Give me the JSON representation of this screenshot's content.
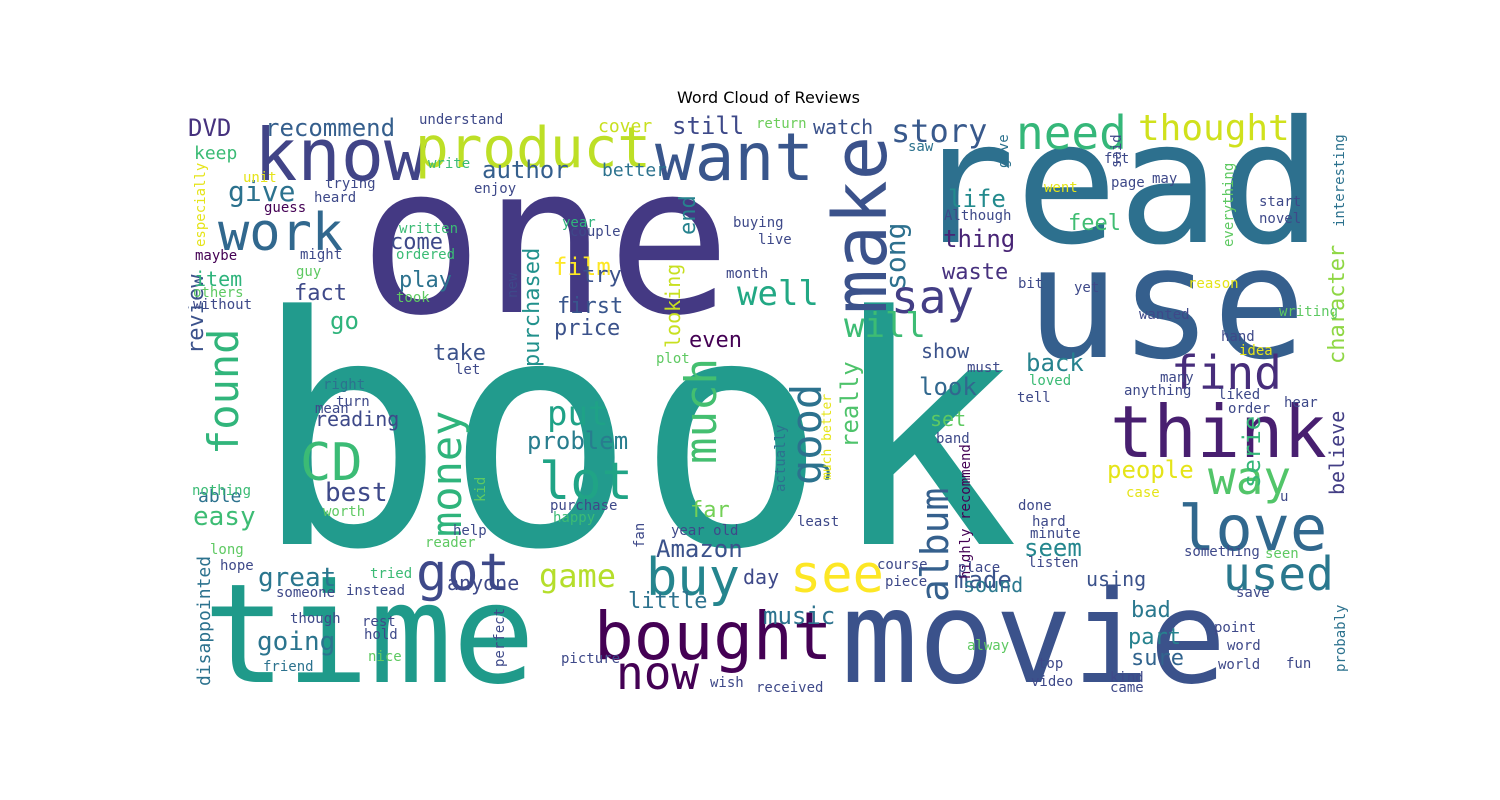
{
  "chart_data": {
    "type": "wordcloud",
    "title": "Word Cloud of Reviews",
    "colormap": "viridis",
    "background": "#ffffff",
    "words": [
      {
        "text": "book",
        "color": "#229b8d"
      },
      {
        "text": "one",
        "color": "#443983"
      },
      {
        "text": "read",
        "color": "#2d708e"
      },
      {
        "text": "use",
        "color": "#355f8d"
      },
      {
        "text": "movie",
        "color": "#3b528b"
      },
      {
        "text": "time",
        "color": "#1f9a8a"
      },
      {
        "text": "know",
        "color": "#414487"
      },
      {
        "text": "want",
        "color": "#39568c"
      },
      {
        "text": "product",
        "color": "#bddf26"
      },
      {
        "text": "bought",
        "color": "#440154"
      },
      {
        "text": "think",
        "color": "#481f70"
      },
      {
        "text": "make",
        "color": "#3b528b"
      },
      {
        "text": "love",
        "color": "#31688e"
      },
      {
        "text": "need",
        "color": "#35b779"
      },
      {
        "text": "thought",
        "color": "#d0e11c"
      },
      {
        "text": "work",
        "color": "#31688e"
      },
      {
        "text": "CD",
        "color": "#3bbb75"
      },
      {
        "text": "see",
        "color": "#fde725"
      },
      {
        "text": "used",
        "color": "#2a788e"
      },
      {
        "text": "way",
        "color": "#52c569"
      },
      {
        "text": "find",
        "color": "#472d7b"
      },
      {
        "text": "say",
        "color": "#433e85"
      },
      {
        "text": "buy",
        "color": "#25858e"
      },
      {
        "text": "lot",
        "color": "#20a486"
      },
      {
        "text": "got",
        "color": "#3e4989"
      },
      {
        "text": "now",
        "color": "#440154"
      },
      {
        "text": "much",
        "color": "#44bf70"
      },
      {
        "text": "good",
        "color": "#2c728e"
      },
      {
        "text": "found",
        "color": "#31b57b"
      },
      {
        "text": "money",
        "color": "#2fb47c"
      },
      {
        "text": "album",
        "color": "#35608d"
      },
      {
        "text": "story",
        "color": "#38598c"
      },
      {
        "text": "well",
        "color": "#22a884"
      },
      {
        "text": "will",
        "color": "#3dbc74"
      },
      {
        "text": "put",
        "color": "#1fa287"
      },
      {
        "text": "game",
        "color": "#b5de2b"
      },
      {
        "text": "give",
        "color": "#2c728e"
      },
      {
        "text": "song",
        "color": "#2d708e"
      },
      {
        "text": "problem",
        "color": "#287d8e"
      },
      {
        "text": "recommend",
        "color": "#355f8d"
      },
      {
        "text": "author",
        "color": "#355f8d"
      },
      {
        "text": "still",
        "color": "#3e4989"
      },
      {
        "text": "watch",
        "color": "#3b528b"
      },
      {
        "text": "DVD",
        "color": "#46327e"
      },
      {
        "text": "great",
        "color": "#2a768e"
      },
      {
        "text": "going",
        "color": "#2b748e"
      },
      {
        "text": "film",
        "color": "#fde725"
      },
      {
        "text": "purchased",
        "color": "#21918c"
      },
      {
        "text": "end",
        "color": "#26828e"
      },
      {
        "text": "people",
        "color": "#e5e419"
      },
      {
        "text": "seem",
        "color": "#24868e"
      },
      {
        "text": "made",
        "color": "#3a548c"
      },
      {
        "text": "music",
        "color": "#2c728e"
      },
      {
        "text": "little",
        "color": "#2c728e"
      },
      {
        "text": "sure",
        "color": "#32648e"
      },
      {
        "text": "Amazon",
        "color": "#3b528b"
      },
      {
        "text": "character",
        "color": "#8fd744"
      },
      {
        "text": "believe",
        "color": "#433e85"
      },
      {
        "text": "really",
        "color": "#4ec36b"
      },
      {
        "text": "thing",
        "color": "#482475"
      },
      {
        "text": "life",
        "color": "#238a8d"
      },
      {
        "text": "feel",
        "color": "#40bd72"
      },
      {
        "text": "waste",
        "color": "#46307e"
      },
      {
        "text": "look",
        "color": "#31688e"
      },
      {
        "text": "show",
        "color": "#3b528b"
      },
      {
        "text": "back",
        "color": "#26828e"
      },
      {
        "text": "serie",
        "color": "#35b779"
      },
      {
        "text": "easy",
        "color": "#3dbc74"
      },
      {
        "text": "best",
        "color": "#3e4989"
      },
      {
        "text": "review",
        "color": "#3b528b"
      },
      {
        "text": "come",
        "color": "#3e4989"
      },
      {
        "text": "play",
        "color": "#2c728e"
      },
      {
        "text": "first",
        "color": "#39568c"
      },
      {
        "text": "price",
        "color": "#3b528b"
      },
      {
        "text": "try",
        "color": "#3b528b"
      },
      {
        "text": "take",
        "color": "#3b528b"
      },
      {
        "text": "even",
        "color": "#440154"
      },
      {
        "text": "fact",
        "color": "#3e4989"
      },
      {
        "text": "go",
        "color": "#2fb47c"
      },
      {
        "text": "item",
        "color": "#2fb47c"
      },
      {
        "text": "keep",
        "color": "#3bbb75"
      },
      {
        "text": "reading",
        "color": "#3e4989"
      },
      {
        "text": "anyone",
        "color": "#3e4989"
      },
      {
        "text": "day",
        "color": "#3e4989"
      },
      {
        "text": "far",
        "color": "#73d056"
      },
      {
        "text": "looking",
        "color": "#c8e020"
      },
      {
        "text": "set",
        "color": "#5ec962"
      },
      {
        "text": "part",
        "color": "#26828e"
      },
      {
        "text": "bad",
        "color": "#2a788e"
      },
      {
        "text": "sound",
        "color": "#2a788e"
      },
      {
        "text": "using",
        "color": "#3b528b"
      },
      {
        "text": "able",
        "color": "#2c728e"
      },
      {
        "text": "disappointed",
        "color": "#2c728e"
      },
      {
        "text": "better",
        "color": "#2c728e"
      },
      {
        "text": "cover",
        "color": "#c8e020"
      },
      {
        "text": "understand",
        "color": "#3e4989"
      },
      {
        "text": "return",
        "color": "#6ccd5a"
      },
      {
        "text": "write",
        "color": "#3bbb75"
      },
      {
        "text": "enjoy",
        "color": "#3e4989"
      },
      {
        "text": "trying",
        "color": "#3e4989"
      },
      {
        "text": "heard",
        "color": "#3e4989"
      },
      {
        "text": "especially",
        "color": "#e5e419"
      },
      {
        "text": "unit",
        "color": "#e5e419"
      },
      {
        "text": "guess",
        "color": "#440154"
      },
      {
        "text": "written",
        "color": "#3bbb75"
      },
      {
        "text": "ordered",
        "color": "#3bbb75"
      },
      {
        "text": "couple",
        "color": "#3e4989"
      },
      {
        "text": "year",
        "color": "#2fb47c"
      },
      {
        "text": "buying",
        "color": "#3e4989"
      },
      {
        "text": "live",
        "color": "#3e4989"
      },
      {
        "text": "month",
        "color": "#3e4989"
      },
      {
        "text": "maybe",
        "color": "#440154"
      },
      {
        "text": "might",
        "color": "#3e4989"
      },
      {
        "text": "guy",
        "color": "#5ec962"
      },
      {
        "text": "others",
        "color": "#5ec962"
      },
      {
        "text": "without",
        "color": "#3e4989"
      },
      {
        "text": "took",
        "color": "#5ec962"
      },
      {
        "text": "new",
        "color": "#3e4989"
      },
      {
        "text": "plot",
        "color": "#5ec962"
      },
      {
        "text": "let",
        "color": "#3e4989"
      },
      {
        "text": "right",
        "color": "#2c728e"
      },
      {
        "text": "turn",
        "color": "#3e4989"
      },
      {
        "text": "mean",
        "color": "#3e4989"
      },
      {
        "text": "nothing",
        "color": "#3bbb75"
      },
      {
        "text": "kid",
        "color": "#5ec962"
      },
      {
        "text": "worth",
        "color": "#5ec962"
      },
      {
        "text": "purchase",
        "color": "#3e4989"
      },
      {
        "text": "happy",
        "color": "#3bbb75"
      },
      {
        "text": "reader",
        "color": "#5ec962"
      },
      {
        "text": "help",
        "color": "#3e4989"
      },
      {
        "text": "year old",
        "color": "#3e4989"
      },
      {
        "text": "fan",
        "color": "#3e4989"
      },
      {
        "text": "long",
        "color": "#5ec962"
      },
      {
        "text": "hope",
        "color": "#3e4989"
      },
      {
        "text": "tried",
        "color": "#3bbb75"
      },
      {
        "text": "instead",
        "color": "#3e4989"
      },
      {
        "text": "someone",
        "color": "#3e4989"
      },
      {
        "text": "though",
        "color": "#3e4989"
      },
      {
        "text": "rest",
        "color": "#3e4989"
      },
      {
        "text": "hold",
        "color": "#3e4989"
      },
      {
        "text": "nice",
        "color": "#5ec962"
      },
      {
        "text": "friend",
        "color": "#2c728e"
      },
      {
        "text": "perfect",
        "color": "#3e4989"
      },
      {
        "text": "picture",
        "color": "#3e4989"
      },
      {
        "text": "wish",
        "color": "#3e4989"
      },
      {
        "text": "received",
        "color": "#3e4989"
      },
      {
        "text": "actually",
        "color": "#2c728e"
      },
      {
        "text": "much better",
        "color": "#e5e419"
      },
      {
        "text": "least",
        "color": "#3e4989"
      },
      {
        "text": "course",
        "color": "#3e4989"
      },
      {
        "text": "piece",
        "color": "#3e4989"
      },
      {
        "text": "must",
        "color": "#3e4989"
      },
      {
        "text": "saw",
        "color": "#2c728e"
      },
      {
        "text": "gave",
        "color": "#2c728e"
      },
      {
        "text": "said",
        "color": "#3e4989"
      },
      {
        "text": "Although",
        "color": "#3e4989"
      },
      {
        "text": "went",
        "color": "#e5e419"
      },
      {
        "text": "fit",
        "color": "#3e4989"
      },
      {
        "text": "page",
        "color": "#3e4989"
      },
      {
        "text": "may",
        "color": "#3e4989"
      },
      {
        "text": "everything",
        "color": "#5ec962"
      },
      {
        "text": "start",
        "color": "#3e4989"
      },
      {
        "text": "novel",
        "color": "#3e4989"
      },
      {
        "text": "interesting",
        "color": "#2c728e"
      },
      {
        "text": "bit",
        "color": "#3e4989"
      },
      {
        "text": "yet",
        "color": "#3e4989"
      },
      {
        "text": "reason",
        "color": "#e5e419"
      },
      {
        "text": "wanted",
        "color": "#3e4989"
      },
      {
        "text": "writing",
        "color": "#5ec962"
      },
      {
        "text": "hand",
        "color": "#3e4989"
      },
      {
        "text": "idea",
        "color": "#e5e419"
      },
      {
        "text": "loved",
        "color": "#3bbb75"
      },
      {
        "text": "tell",
        "color": "#3e4989"
      },
      {
        "text": "many",
        "color": "#3e4989"
      },
      {
        "text": "anything",
        "color": "#3e4989"
      },
      {
        "text": "liked",
        "color": "#3e4989"
      },
      {
        "text": "order",
        "color": "#3e4989"
      },
      {
        "text": "hear",
        "color": "#3e4989"
      },
      {
        "text": "band",
        "color": "#3e4989"
      },
      {
        "text": "highly recommend",
        "color": "#440154"
      },
      {
        "text": "case",
        "color": "#e5e419"
      },
      {
        "text": "done",
        "color": "#3e4989"
      },
      {
        "text": "u",
        "color": "#3e4989"
      },
      {
        "text": "hard",
        "color": "#3e4989"
      },
      {
        "text": "minute",
        "color": "#3e4989"
      },
      {
        "text": "something",
        "color": "#3e4989"
      },
      {
        "text": "seen",
        "color": "#5ec962"
      },
      {
        "text": "place",
        "color": "#3e4989"
      },
      {
        "text": "listen",
        "color": "#3e4989"
      },
      {
        "text": "save",
        "color": "#3e4989"
      },
      {
        "text": "point",
        "color": "#3e4989"
      },
      {
        "text": "alway",
        "color": "#5ec962"
      },
      {
        "text": "word",
        "color": "#3e4989"
      },
      {
        "text": "top",
        "color": "#3e4989"
      },
      {
        "text": "world",
        "color": "#3e4989"
      },
      {
        "text": "video",
        "color": "#3e4989"
      },
      {
        "text": "kind",
        "color": "#3e4989"
      },
      {
        "text": "came",
        "color": "#3e4989"
      },
      {
        "text": "fun",
        "color": "#3e4989"
      },
      {
        "text": "probably",
        "color": "#2c728e"
      }
    ]
  }
}
